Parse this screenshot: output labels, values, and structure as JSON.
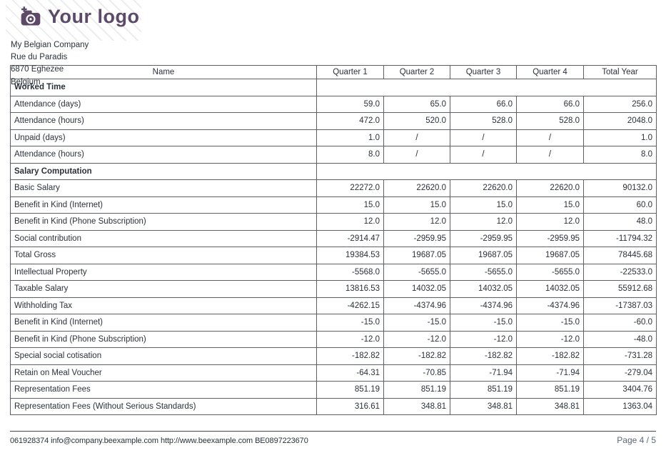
{
  "logo": {
    "text": "Your logo",
    "color": "#5c4a68"
  },
  "company": {
    "name": "My Belgian Company",
    "street": "Rue du Paradis",
    "city": "6870 Eghezee",
    "country": "Belgium"
  },
  "table": {
    "headers": [
      "Name",
      "Quarter 1",
      "Quarter 2",
      "Quarter 3",
      "Quarter 4",
      "Total Year"
    ],
    "rows": [
      {
        "type": "section",
        "label": "Worked Time"
      },
      {
        "type": "data",
        "label": "Attendance (days)",
        "values": [
          "59.0",
          "65.0",
          "66.0",
          "66.0",
          "256.0"
        ]
      },
      {
        "type": "data",
        "label": "Attendance (hours)",
        "values": [
          "472.0",
          "520.0",
          "528.0",
          "528.0",
          "2048.0"
        ]
      },
      {
        "type": "data",
        "label": "Unpaid (days)",
        "values": [
          "1.0",
          "/",
          "/",
          "/",
          "1.0"
        ]
      },
      {
        "type": "data",
        "label": "Attendance (hours)",
        "values": [
          "8.0",
          "/",
          "/",
          "/",
          "8.0"
        ]
      },
      {
        "type": "section",
        "label": "Salary Computation"
      },
      {
        "type": "data",
        "label": "Basic Salary",
        "values": [
          "22272.0",
          "22620.0",
          "22620.0",
          "22620.0",
          "90132.0"
        ]
      },
      {
        "type": "data",
        "label": "Benefit in Kind (Internet)",
        "values": [
          "15.0",
          "15.0",
          "15.0",
          "15.0",
          "60.0"
        ]
      },
      {
        "type": "data",
        "label": "Benefit in Kind (Phone Subscription)",
        "values": [
          "12.0",
          "12.0",
          "12.0",
          "12.0",
          "48.0"
        ]
      },
      {
        "type": "data",
        "label": "Social contribution",
        "values": [
          "-2914.47",
          "-2959.95",
          "-2959.95",
          "-2959.95",
          "-11794.32"
        ]
      },
      {
        "type": "data",
        "label": "Total Gross",
        "values": [
          "19384.53",
          "19687.05",
          "19687.05",
          "19687.05",
          "78445.68"
        ]
      },
      {
        "type": "data",
        "label": "Intellectual Property",
        "values": [
          "-5568.0",
          "-5655.0",
          "-5655.0",
          "-5655.0",
          "-22533.0"
        ]
      },
      {
        "type": "data",
        "label": "Taxable Salary",
        "values": [
          "13816.53",
          "14032.05",
          "14032.05",
          "14032.05",
          "55912.68"
        ]
      },
      {
        "type": "data",
        "label": "Withholding Tax",
        "values": [
          "-4262.15",
          "-4374.96",
          "-4374.96",
          "-4374.96",
          "-17387.03"
        ]
      },
      {
        "type": "data",
        "label": "Benefit in Kind (Internet)",
        "values": [
          "-15.0",
          "-15.0",
          "-15.0",
          "-15.0",
          "-60.0"
        ]
      },
      {
        "type": "data",
        "label": "Benefit in Kind (Phone Subscription)",
        "values": [
          "-12.0",
          "-12.0",
          "-12.0",
          "-12.0",
          "-48.0"
        ]
      },
      {
        "type": "data",
        "label": "Special social cotisation",
        "values": [
          "-182.82",
          "-182.82",
          "-182.82",
          "-182.82",
          "-731.28"
        ]
      },
      {
        "type": "data",
        "label": "Retain on Meal Voucher",
        "values": [
          "-64.31",
          "-70.85",
          "-71.94",
          "-71.94",
          "-279.04"
        ]
      },
      {
        "type": "data",
        "label": "Representation Fees",
        "values": [
          "851.19",
          "851.19",
          "851.19",
          "851.19",
          "3404.76"
        ]
      },
      {
        "type": "data",
        "label": "Representation Fees (Without Serious Standards)",
        "values": [
          "316.61",
          "348.81",
          "348.81",
          "348.81",
          "1363.04"
        ]
      }
    ]
  },
  "footer": {
    "phone": "061928374",
    "email": "info@company.beexample.com",
    "website": "http://www.beexample.com",
    "vat": "BE0897223670",
    "page": "Page 4 / 5"
  }
}
